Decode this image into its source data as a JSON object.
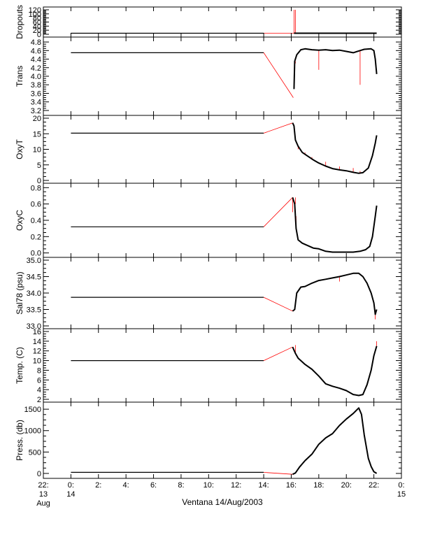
{
  "chart_data": {
    "type": "line",
    "title": "",
    "xlabel": "Ventana 14/Aug/2003",
    "x_unit": "hours from 00:00 14 Aug 2003",
    "xlim": [
      -2,
      24
    ],
    "x_ticks": [
      {
        "v": -2,
        "l1": "22:",
        "l2": "13",
        "l3": "Aug"
      },
      {
        "v": 0,
        "l1": "0:",
        "l2": "14",
        "l3": ""
      },
      {
        "v": 2,
        "l1": "2:",
        "l2": "",
        "l3": ""
      },
      {
        "v": 4,
        "l1": "4:",
        "l2": "",
        "l3": ""
      },
      {
        "v": 6,
        "l1": "6:",
        "l2": "",
        "l3": ""
      },
      {
        "v": 8,
        "l1": "8:",
        "l2": "",
        "l3": ""
      },
      {
        "v": 10,
        "l1": "10:",
        "l2": "",
        "l3": ""
      },
      {
        "v": 12,
        "l1": "12:",
        "l2": "",
        "l3": ""
      },
      {
        "v": 14,
        "l1": "14:",
        "l2": "",
        "l3": ""
      },
      {
        "v": 16,
        "l1": "16:",
        "l2": "",
        "l3": ""
      },
      {
        "v": 18,
        "l1": "18:",
        "l2": "",
        "l3": ""
      },
      {
        "v": 20,
        "l1": "20:",
        "l2": "",
        "l3": ""
      },
      {
        "v": 22,
        "l1": "22:",
        "l2": "",
        "l3": ""
      },
      {
        "v": 24,
        "l1": "0:",
        "l2": "15",
        "l3": ""
      }
    ],
    "colors": {
      "data": "#000000",
      "gap_line": "#ff0000",
      "frame": "#000000"
    },
    "panels": [
      {
        "name": "dropouts",
        "ylabel": "Dropouts",
        "ylim": [
          0,
          120
        ],
        "y_ticks": [
          0,
          20,
          40,
          60,
          80,
          100,
          120
        ],
        "y_tick_labels": [
          "0",
          "20",
          "40",
          "60",
          "80",
          "100",
          "120"
        ],
        "black": [
          [
            0,
            5
          ],
          [
            14,
            5
          ]
        ],
        "red": [
          [
            14,
            5
          ],
          [
            16.2,
            5
          ]
        ],
        "spikes": [
          [
            16.2,
            120
          ],
          [
            16.3,
            120
          ]
        ],
        "series": [
          [
            16.2,
            5
          ],
          [
            17,
            5
          ],
          [
            18,
            5
          ],
          [
            19,
            5
          ],
          [
            20,
            5
          ],
          [
            21,
            5
          ],
          [
            22.2,
            5
          ]
        ]
      },
      {
        "name": "trans",
        "ylabel": "Trans",
        "ylim": [
          3.15,
          4.85
        ],
        "y_ticks": [
          3.2,
          3.4,
          3.6,
          3.8,
          4.0,
          4.2,
          4.4,
          4.6,
          4.8
        ],
        "y_tick_labels": [
          "3.2",
          "3.4",
          "3.6",
          "3.8",
          "4.0",
          "4.2",
          "4.4",
          "4.6",
          "4.8"
        ],
        "black": [
          [
            0,
            4.55
          ],
          [
            14,
            4.55
          ]
        ],
        "red": [
          [
            14,
            4.55
          ],
          [
            16.15,
            3.5
          ]
        ],
        "spikes": [
          [
            18,
            4.15
          ],
          [
            21,
            3.8
          ],
          [
            16.3,
            4.3
          ]
        ],
        "series": [
          [
            16.2,
            3.7
          ],
          [
            16.25,
            4.35
          ],
          [
            16.4,
            4.5
          ],
          [
            16.7,
            4.62
          ],
          [
            17.0,
            4.64
          ],
          [
            17.5,
            4.62
          ],
          [
            18,
            4.61
          ],
          [
            18.5,
            4.62
          ],
          [
            19,
            4.6
          ],
          [
            19.5,
            4.61
          ],
          [
            20,
            4.58
          ],
          [
            20.5,
            4.55
          ],
          [
            21,
            4.6
          ],
          [
            21.3,
            4.63
          ],
          [
            21.8,
            4.64
          ],
          [
            22.0,
            4.6
          ],
          [
            22.1,
            4.4
          ],
          [
            22.2,
            4.05
          ]
        ]
      },
      {
        "name": "oxyt",
        "ylabel": "OxyT",
        "ylim": [
          0,
          20
        ],
        "y_ticks": [
          0,
          5,
          10,
          15,
          20
        ],
        "y_tick_labels": [
          "0",
          "5",
          "10",
          "15",
          "20"
        ],
        "black": [
          [
            0,
            15.2
          ],
          [
            14,
            15.2
          ]
        ],
        "red": [
          [
            14,
            15.2
          ],
          [
            16.1,
            18.5
          ]
        ],
        "spikes": [
          [
            16.5,
            10
          ],
          [
            17,
            8.5
          ],
          [
            17.5,
            7.5
          ],
          [
            18.5,
            6
          ],
          [
            19.5,
            4.5
          ],
          [
            20.5,
            4
          ],
          [
            21,
            3
          ]
        ],
        "series": [
          [
            16.1,
            18.5
          ],
          [
            16.2,
            17.5
          ],
          [
            16.3,
            13
          ],
          [
            16.5,
            11
          ],
          [
            16.8,
            9
          ],
          [
            17.2,
            7.8
          ],
          [
            17.6,
            6.6
          ],
          [
            18.0,
            5.6
          ],
          [
            18.5,
            4.6
          ],
          [
            19.0,
            3.8
          ],
          [
            19.5,
            3.4
          ],
          [
            20.0,
            3.1
          ],
          [
            20.5,
            2.6
          ],
          [
            20.9,
            2.3
          ],
          [
            21.2,
            2.5
          ],
          [
            21.6,
            4
          ],
          [
            21.9,
            8
          ],
          [
            22.1,
            12
          ],
          [
            22.2,
            14.5
          ]
        ]
      },
      {
        "name": "oxyc",
        "ylabel": "OxyC",
        "ylim": [
          -0.02,
          0.82
        ],
        "y_ticks": [
          0.0,
          0.2,
          0.4,
          0.6,
          0.8
        ],
        "y_tick_labels": [
          "0.0",
          "0.2",
          "0.4",
          "0.6",
          "0.8"
        ],
        "black": [
          [
            0,
            0.32
          ],
          [
            14,
            0.32
          ]
        ],
        "red": [
          [
            14,
            0.32
          ],
          [
            16.1,
            0.68
          ]
        ],
        "spikes": [
          [
            16.1,
            0.5
          ],
          [
            16.3,
            0.68
          ],
          [
            16.35,
            0.45
          ]
        ],
        "series": [
          [
            16.1,
            0.68
          ],
          [
            16.25,
            0.6
          ],
          [
            16.35,
            0.3
          ],
          [
            16.5,
            0.16
          ],
          [
            16.8,
            0.12
          ],
          [
            17.2,
            0.09
          ],
          [
            17.6,
            0.06
          ],
          [
            18.0,
            0.05
          ],
          [
            18.5,
            0.02
          ],
          [
            19.0,
            0.01
          ],
          [
            19.5,
            0.01
          ],
          [
            20.0,
            0.01
          ],
          [
            20.5,
            0.01
          ],
          [
            21.0,
            0.02
          ],
          [
            21.4,
            0.04
          ],
          [
            21.7,
            0.08
          ],
          [
            21.9,
            0.2
          ],
          [
            22.1,
            0.45
          ],
          [
            22.2,
            0.58
          ]
        ]
      },
      {
        "name": "sal78",
        "ylabel": "Sal78 (psu)",
        "ylim": [
          33.0,
          35.0
        ],
        "y_ticks": [
          33.0,
          33.5,
          34.0,
          34.5,
          35.0
        ],
        "y_tick_labels": [
          "33.0",
          "33.5",
          "34.0",
          "34.5",
          "35.0"
        ],
        "black": [
          [
            0,
            33.87
          ],
          [
            14,
            33.87
          ]
        ],
        "red": [
          [
            14,
            33.87
          ],
          [
            16.1,
            33.45
          ]
        ],
        "spikes": [
          [
            19.5,
            34.35
          ],
          [
            22.1,
            33.2
          ]
        ],
        "series": [
          [
            16.1,
            33.45
          ],
          [
            16.25,
            33.5
          ],
          [
            16.4,
            34.0
          ],
          [
            16.7,
            34.18
          ],
          [
            17.0,
            34.2
          ],
          [
            17.5,
            34.3
          ],
          [
            18.0,
            34.38
          ],
          [
            18.5,
            34.42
          ],
          [
            19.0,
            34.46
          ],
          [
            19.5,
            34.5
          ],
          [
            20.0,
            34.55
          ],
          [
            20.5,
            34.6
          ],
          [
            20.9,
            34.6
          ],
          [
            21.2,
            34.5
          ],
          [
            21.5,
            34.3
          ],
          [
            21.8,
            34.0
          ],
          [
            22.0,
            33.7
          ],
          [
            22.1,
            33.35
          ],
          [
            22.2,
            33.5
          ]
        ]
      },
      {
        "name": "temp",
        "ylabel": "Temp. (C)",
        "ylim": [
          2,
          16
        ],
        "y_ticks": [
          2,
          4,
          6,
          8,
          10,
          12,
          14,
          16
        ],
        "y_tick_labels": [
          "2",
          "4",
          "6",
          "8",
          "10",
          "12",
          "14",
          "16"
        ],
        "black": [
          [
            0,
            10
          ],
          [
            14,
            10
          ]
        ],
        "red": [
          [
            14,
            10
          ],
          [
            16.1,
            12.8
          ]
        ],
        "spikes": [
          [
            16.3,
            13.2
          ],
          [
            22.2,
            14
          ]
        ],
        "series": [
          [
            16.1,
            12.8
          ],
          [
            16.3,
            11.5
          ],
          [
            16.5,
            10.5
          ],
          [
            17.0,
            9.2
          ],
          [
            17.5,
            8.2
          ],
          [
            18.0,
            6.8
          ],
          [
            18.5,
            5.2
          ],
          [
            19.0,
            4.7
          ],
          [
            19.5,
            4.3
          ],
          [
            20.0,
            3.8
          ],
          [
            20.5,
            3.0
          ],
          [
            20.9,
            2.8
          ],
          [
            21.2,
            3.0
          ],
          [
            21.5,
            5
          ],
          [
            21.8,
            8
          ],
          [
            22.0,
            11
          ],
          [
            22.2,
            13
          ]
        ]
      },
      {
        "name": "press",
        "ylabel": "Press. (db)",
        "ylim": [
          -50,
          1600
        ],
        "y_ticks": [
          0,
          500,
          1000,
          1500
        ],
        "y_tick_labels": [
          "0",
          "500",
          "1000",
          "1500"
        ],
        "black": [
          [
            0,
            25
          ],
          [
            14,
            25
          ]
        ],
        "red": [
          [
            14,
            25
          ],
          [
            16.1,
            -20
          ]
        ],
        "spikes": [],
        "series": [
          [
            16.1,
            -20
          ],
          [
            16.3,
            10
          ],
          [
            16.6,
            150
          ],
          [
            17.0,
            300
          ],
          [
            17.5,
            450
          ],
          [
            18.0,
            680
          ],
          [
            18.5,
            830
          ],
          [
            19.0,
            930
          ],
          [
            19.5,
            1120
          ],
          [
            20.0,
            1270
          ],
          [
            20.5,
            1400
          ],
          [
            20.9,
            1530
          ],
          [
            21.1,
            1380
          ],
          [
            21.3,
            900
          ],
          [
            21.6,
            350
          ],
          [
            21.8,
            160
          ],
          [
            22.0,
            40
          ],
          [
            22.2,
            0
          ]
        ]
      }
    ]
  }
}
